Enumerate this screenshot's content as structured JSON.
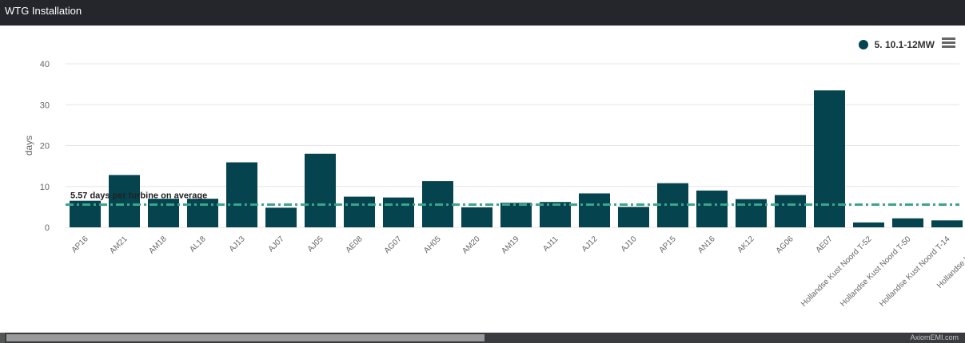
{
  "header": {
    "title": "WTG Installation"
  },
  "legend": {
    "label": "5. 10.1-12MW",
    "color": "#05434f"
  },
  "menu": {
    "icon": "hamburger-menu-icon"
  },
  "footer": {
    "credit": "AxiomEMI.com"
  },
  "chart_data": {
    "type": "bar",
    "title": "",
    "xlabel": "",
    "ylabel": "days",
    "ylim": [
      0,
      40
    ],
    "yticks": [
      0,
      10,
      20,
      30,
      40
    ],
    "grid": true,
    "legend_position": "top-right",
    "categories": [
      "AP16",
      "AM21",
      "AM18",
      "AL18",
      "AJ13",
      "AJ07",
      "AJ05",
      "AE08",
      "AG07",
      "AH05",
      "AM20",
      "AM19",
      "AJ11",
      "AJ12",
      "AJ10",
      "AP15",
      "AN16",
      "AK12",
      "AG06",
      "AE07",
      "Hollandse Kust Noord T-52",
      "Hollandse Kust Noord T-50",
      "Hollandse Kust Noord T-14",
      "Hollandse Kust N…"
    ],
    "series": [
      {
        "name": "5. 10.1-12MW",
        "color": "#05434f",
        "values": [
          6.5,
          12.8,
          7.0,
          7.0,
          15.9,
          4.8,
          18.0,
          7.5,
          7.3,
          11.3,
          4.9,
          6.0,
          6.2,
          8.3,
          5.0,
          10.8,
          9.0,
          6.9,
          7.9,
          33.5,
          1.2,
          2.2,
          1.7,
          0
        ]
      }
    ],
    "average": {
      "value": 5.57,
      "label": "5.57 days per turbine on average",
      "color": "#3aa58a"
    }
  }
}
